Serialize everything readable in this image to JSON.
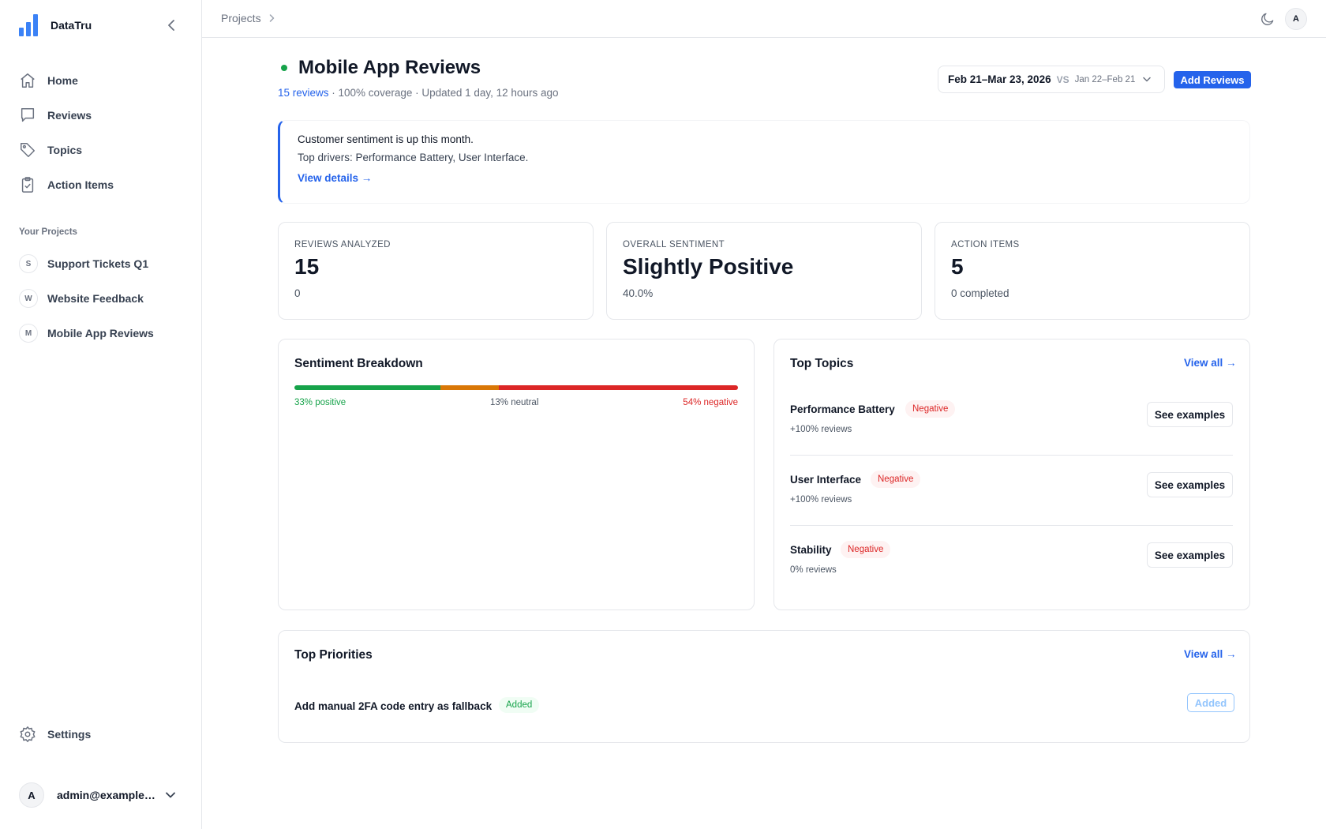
{
  "app": {
    "name": "DataTru"
  },
  "sidebar": {
    "nav": [
      {
        "label": "Home",
        "icon": "home-icon"
      },
      {
        "label": "Reviews",
        "icon": "message-icon"
      },
      {
        "label": "Topics",
        "icon": "tag-icon"
      },
      {
        "label": "Action Items",
        "icon": "clipboard-check-icon"
      }
    ],
    "projects_title": "Your Projects",
    "projects": [
      {
        "initial": "S",
        "label": "Support Tickets Q1"
      },
      {
        "initial": "W",
        "label": "Website Feedback"
      },
      {
        "initial": "M",
        "label": "Mobile App Reviews"
      }
    ],
    "settings_label": "Settings",
    "user": {
      "initial": "A",
      "email": "admin@example.c..."
    }
  },
  "topbar": {
    "breadcrumb": "Projects",
    "avatar_initial": "A"
  },
  "page": {
    "title": "Mobile App Reviews",
    "reviews_link": "15 reviews",
    "meta_rest": " · 100% coverage · Updated 1 day, 12 hours ago",
    "date_range": "Feb 21–Mar 23, 2026",
    "vs_label": "VS",
    "compare_range": "Jan 22–Feb 21",
    "add_button": "Add Reviews"
  },
  "insight": {
    "headline": "Customer sentiment is up this month.",
    "drivers": "Top drivers: Performance Battery, User Interface.",
    "link": "View details →"
  },
  "stats": [
    {
      "label": "REVIEWS ANALYZED",
      "value": "15",
      "sub": "0"
    },
    {
      "label": "OVERALL SENTIMENT",
      "value": "Slightly Positive",
      "sub": "40.0%"
    },
    {
      "label": "ACTION ITEMS",
      "value": "5",
      "sub": "0 completed"
    }
  ],
  "sentiment": {
    "title": "Sentiment Breakdown",
    "positive_pct": 33,
    "neutral_pct": 13,
    "negative_pct": 54,
    "positive_label": "33% positive",
    "neutral_label": "13% neutral",
    "negative_label": "54% negative",
    "colors": {
      "positive": "#16a34a",
      "neutral": "#d97706",
      "negative": "#dc2626"
    }
  },
  "topics": {
    "title": "Top Topics",
    "view_all": "View all →",
    "items": [
      {
        "name": "Performance Battery",
        "badge": "Negative",
        "sub": "+100% reviews",
        "button": "See examples"
      },
      {
        "name": "User Interface",
        "badge": "Negative",
        "sub": "+100% reviews",
        "button": "See examples"
      },
      {
        "name": "Stability",
        "badge": "Negative",
        "sub": "0% reviews",
        "button": "See examples"
      }
    ]
  },
  "priorities": {
    "title": "Top Priorities",
    "view_all": "View all →",
    "items": [
      {
        "name": "Add manual 2FA code entry as fallback",
        "badge": "Added",
        "button": "Added"
      }
    ]
  },
  "colors": {
    "accent": "#2563eb",
    "brand": "#3b82f6",
    "status_dot": "#16a34a"
  }
}
